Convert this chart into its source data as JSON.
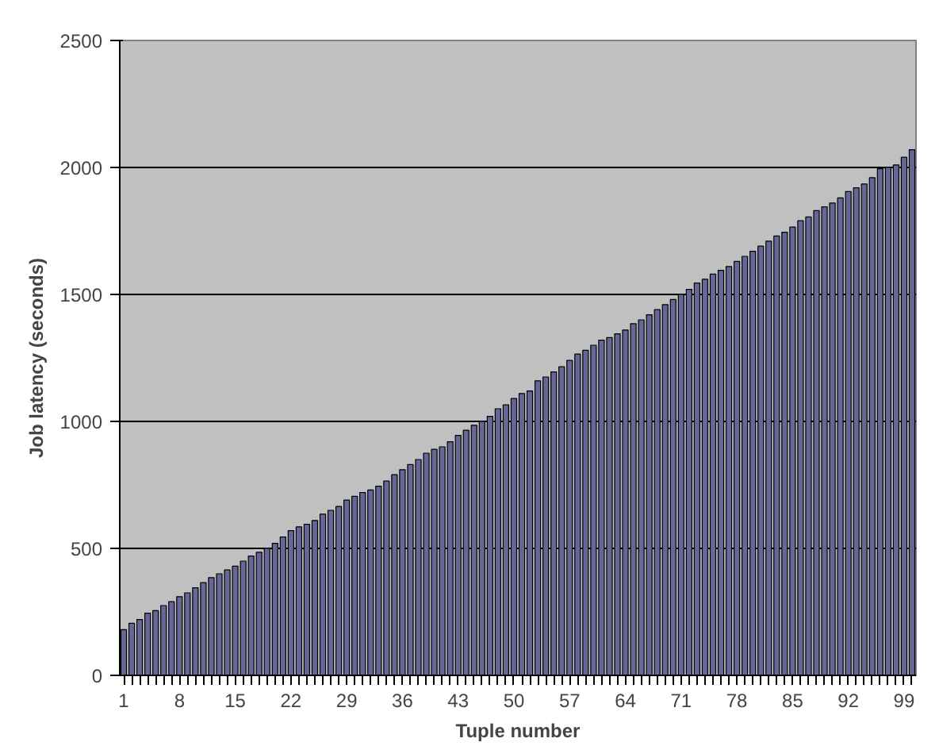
{
  "chart_data": {
    "type": "bar",
    "xlabel": "Tuple number",
    "ylabel": "Job latency (seconds)",
    "categories": [
      "1",
      null,
      null,
      null,
      null,
      null,
      null,
      "8",
      null,
      null,
      null,
      null,
      null,
      null,
      "15",
      null,
      null,
      null,
      null,
      null,
      null,
      "22",
      null,
      null,
      null,
      null,
      null,
      null,
      "29",
      null,
      null,
      null,
      null,
      null,
      null,
      "36",
      null,
      null,
      null,
      null,
      null,
      null,
      "43",
      null,
      null,
      null,
      null,
      null,
      null,
      "50",
      null,
      null,
      null,
      null,
      null,
      null,
      "57",
      null,
      null,
      null,
      null,
      null,
      null,
      "64",
      null,
      null,
      null,
      null,
      null,
      null,
      "71",
      null,
      null,
      null,
      null,
      null,
      null,
      "78",
      null,
      null,
      null,
      null,
      null,
      null,
      "85",
      null,
      null,
      null,
      null,
      null,
      null,
      "92",
      null,
      null,
      null,
      null,
      null,
      null,
      "99",
      null
    ],
    "values": [
      180,
      205,
      220,
      245,
      255,
      275,
      290,
      310,
      325,
      345,
      365,
      385,
      400,
      415,
      430,
      450,
      470,
      485,
      500,
      520,
      545,
      570,
      585,
      595,
      610,
      635,
      650,
      665,
      690,
      705,
      720,
      730,
      745,
      765,
      790,
      810,
      830,
      850,
      875,
      890,
      900,
      920,
      945,
      965,
      985,
      1000,
      1020,
      1050,
      1065,
      1090,
      1110,
      1120,
      1160,
      1175,
      1195,
      1215,
      1240,
      1265,
      1280,
      1300,
      1320,
      1330,
      1345,
      1360,
      1385,
      1400,
      1420,
      1440,
      1460,
      1480,
      1500,
      1520,
      1545,
      1560,
      1580,
      1595,
      1610,
      1630,
      1650,
      1670,
      1690,
      1710,
      1730,
      1745,
      1765,
      1790,
      1805,
      1830,
      1845,
      1860,
      1880,
      1905,
      1920,
      1935,
      1960,
      1995,
      2000,
      2010,
      2040,
      2070
    ],
    "color": "#666699",
    "ylim": [
      0,
      2500
    ],
    "yticks": [
      0,
      500,
      1000,
      1500,
      2000,
      2500
    ],
    "grid": "y"
  }
}
